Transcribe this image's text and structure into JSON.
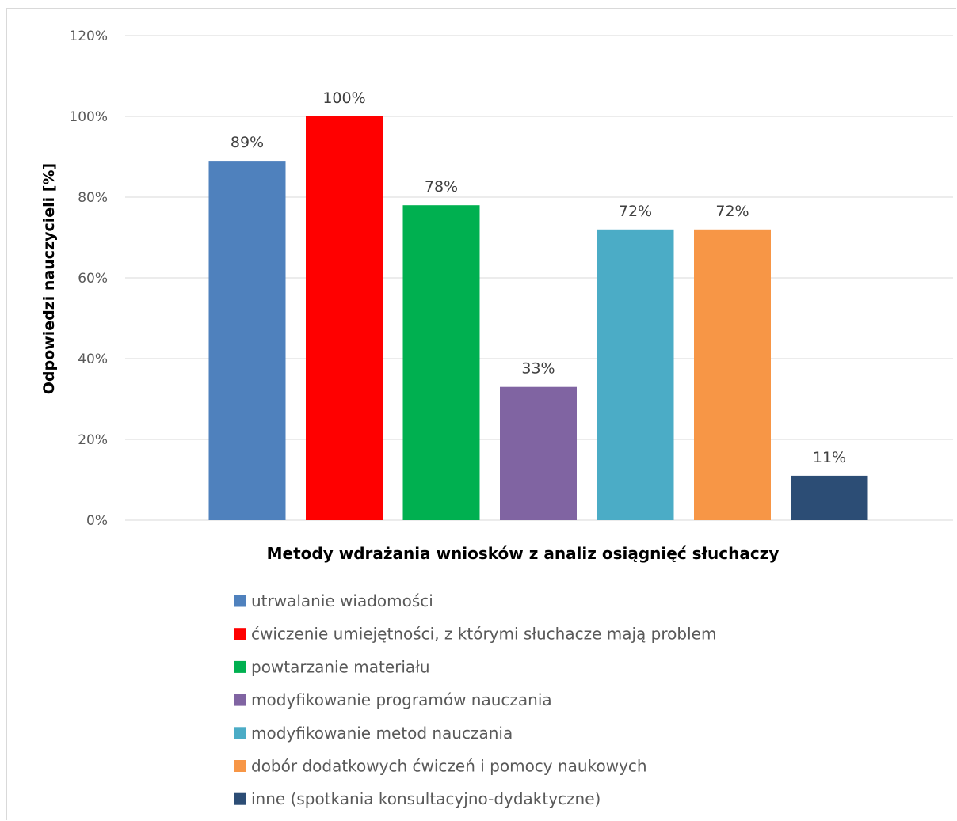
{
  "chart_data": {
    "type": "bar",
    "categories": [
      "utrwalanie wiadomości",
      "ćwiczenie umiejętności, z którymi słuchacze mają problem",
      "powtarzanie materiału",
      "modyfikowanie programów nauczania",
      "modyfikowanie metod nauczania",
      "dobór dodatkowych ćwiczeń i pomocy naukowych",
      "inne (spotkania konsultacyjno-dydaktyczne)"
    ],
    "values": [
      89,
      100,
      78,
      33,
      72,
      72,
      11
    ],
    "data_labels": [
      "89%",
      "100%",
      "78%",
      "33%",
      "72%",
      "72%",
      "11%"
    ],
    "colors": [
      "#4F81BD",
      "#FF0000",
      "#00B050",
      "#8064A2",
      "#4BACC6",
      "#F79646",
      "#2C4D75"
    ],
    "title": "",
    "xlabel": "Metody wdrażania wniosków z analiz osiągnięć słuchaczy",
    "ylabel": "Odpowiedzi nauczycieli [%]",
    "ylim": [
      0,
      120
    ],
    "yticks": [
      0,
      20,
      40,
      60,
      80,
      100,
      120
    ],
    "ytick_labels": [
      "0%",
      "20%",
      "40%",
      "60%",
      "80%",
      "100%",
      "120%"
    ],
    "grid": true,
    "legend_position": "bottom"
  }
}
